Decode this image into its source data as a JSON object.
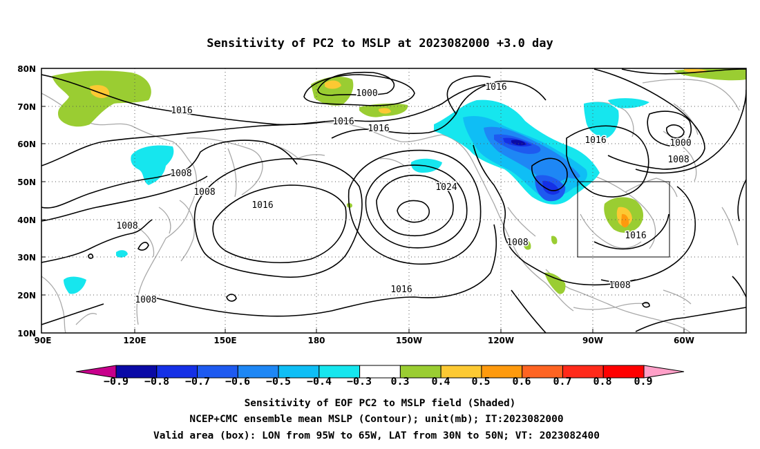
{
  "title": "Sensitivity of PC2 to MSLP at 2023082000 +3.0 day",
  "lat_labels": [
    "80N",
    "70N",
    "60N",
    "50N",
    "40N",
    "30N",
    "20N",
    "10N"
  ],
  "lon_labels": [
    "90E",
    "120E",
    "150E",
    "180",
    "150W",
    "120W",
    "90W",
    "60W"
  ],
  "contour_labels": [
    {
      "text": "1000"
    },
    {
      "text": "1016"
    },
    {
      "text": "1016"
    },
    {
      "text": "1016"
    },
    {
      "text": "1016"
    },
    {
      "text": "1008"
    },
    {
      "text": "1008"
    },
    {
      "text": "1016"
    },
    {
      "text": "1024"
    },
    {
      "text": "1008"
    },
    {
      "text": "1008"
    },
    {
      "text": "1016"
    },
    {
      "text": "1008"
    },
    {
      "text": "1016"
    },
    {
      "text": "1000"
    },
    {
      "text": "1008"
    },
    {
      "text": "1016"
    }
  ],
  "colorbar": {
    "labels": [
      "−0.9",
      "−0.8",
      "−0.7",
      "−0.6",
      "−0.5",
      "−0.4",
      "−0.3",
      "0.3",
      "0.4",
      "0.5",
      "0.6",
      "0.7",
      "0.8",
      "0.9"
    ],
    "colors": [
      "#0a0aa6",
      "#1530e6",
      "#1e5af0",
      "#1e87f5",
      "#0fbef5",
      "#16e6ee",
      "#ffffff",
      "#9acd32",
      "#fcc933",
      "#fe9a0e",
      "#fe6422",
      "#ff2a1a",
      "#ff0000"
    ],
    "low_tri": "#c8008c",
    "high_tri": "#ffa0c8"
  },
  "caption": {
    "line1": "Sensitivity of EOF PC2 to MSLP field (Shaded)",
    "line2": "NCEP+CMC ensemble mean MSLP (Contour); unit(mb); IT:2023082000",
    "line3": "Valid area (box): LON from 95W to 65W, LAT from 30N to 50N; VT: 2023082400"
  }
}
